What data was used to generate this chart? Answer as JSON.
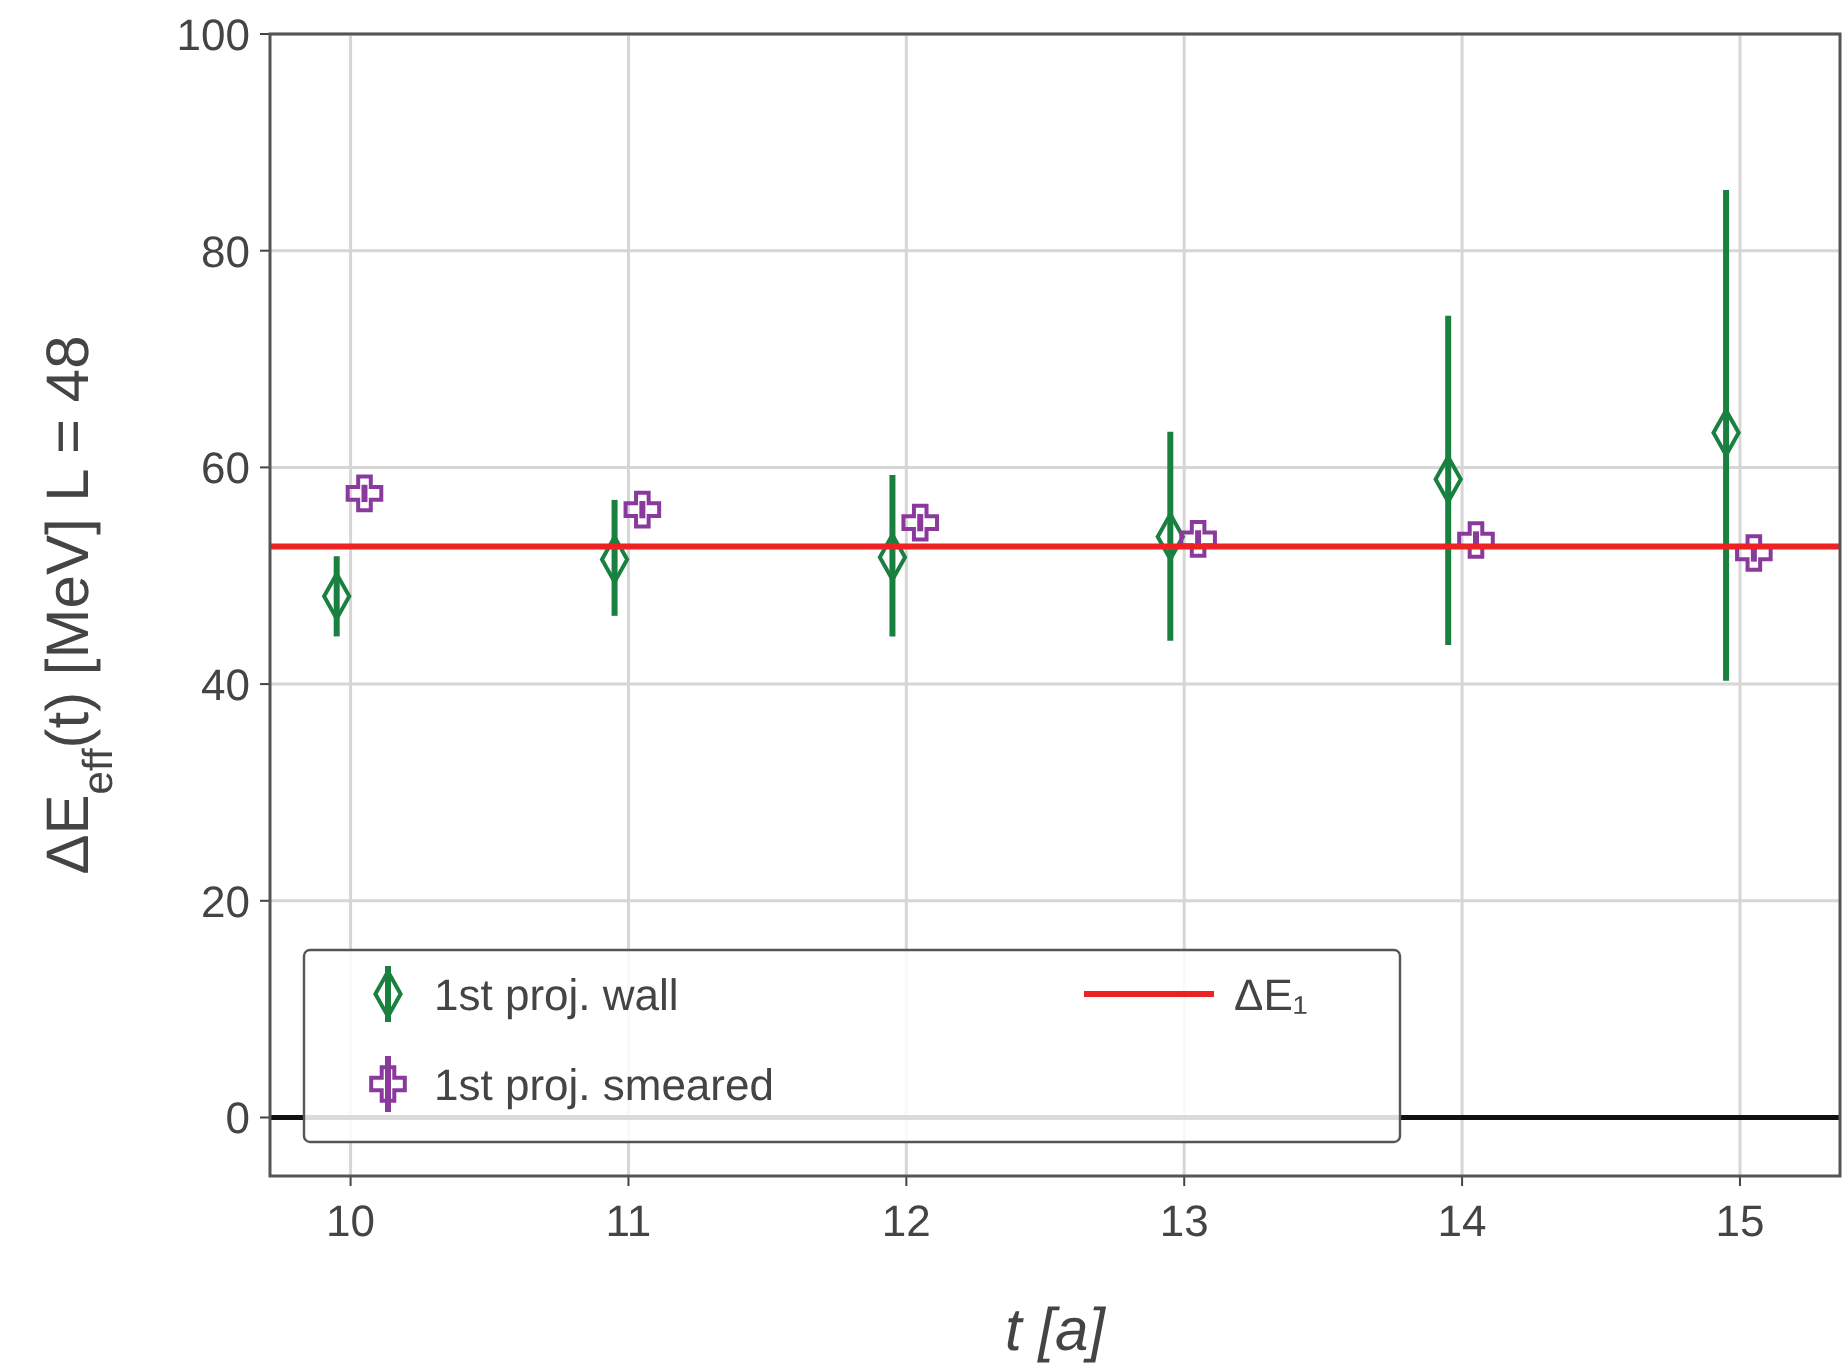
{
  "chart_data": {
    "type": "scatter",
    "xlabel": "t [a]",
    "ylabel": "ΔE$_{eff}$(t) [MeV] L = 48",
    "xlim": [
      9.71,
      15.36
    ],
    "xticks": [
      10,
      11,
      12,
      13,
      14,
      15
    ],
    "ylim": [
      -5.4,
      100
    ],
    "yticks": [
      0,
      20,
      40,
      60,
      80,
      100
    ],
    "grid": true,
    "legend": "bottom",
    "series": [
      {
        "name": "1st proj. wall",
        "marker": "diamond",
        "color": "#1a8040",
        "x": [
          9.95,
          10.95,
          11.95,
          12.95,
          13.95,
          14.95
        ],
        "values": [
          48.1,
          51.5,
          51.7,
          53.6,
          58.9,
          63.2
        ],
        "errors": [
          [
            44.4,
            51.8
          ],
          [
            46.3,
            57.0
          ],
          [
            44.4,
            59.3
          ],
          [
            44.0,
            63.3
          ],
          [
            43.6,
            74.0
          ],
          [
            40.3,
            85.6
          ]
        ]
      },
      {
        "name": "1st proj. smeared",
        "marker": "cross",
        "color": "#8a3a9c",
        "x": [
          10.05,
          11.05,
          12.05,
          13.05,
          14.05,
          15.05
        ],
        "values": [
          57.6,
          56.1,
          54.9,
          53.4,
          53.3,
          52.1
        ],
        "errors": [
          0.8,
          0.8,
          0.8,
          0.8,
          0.8,
          0.8
        ]
      },
      {
        "name": "ΔE₁",
        "type": "line",
        "marker": "none",
        "color": "#ee2222",
        "x": [
          9.71,
          15.36
        ],
        "values": [
          52.7,
          52.7
        ]
      }
    ],
    "ref_lines": [
      {
        "axis": "y",
        "value": 0,
        "color": "#111111"
      }
    ]
  }
}
